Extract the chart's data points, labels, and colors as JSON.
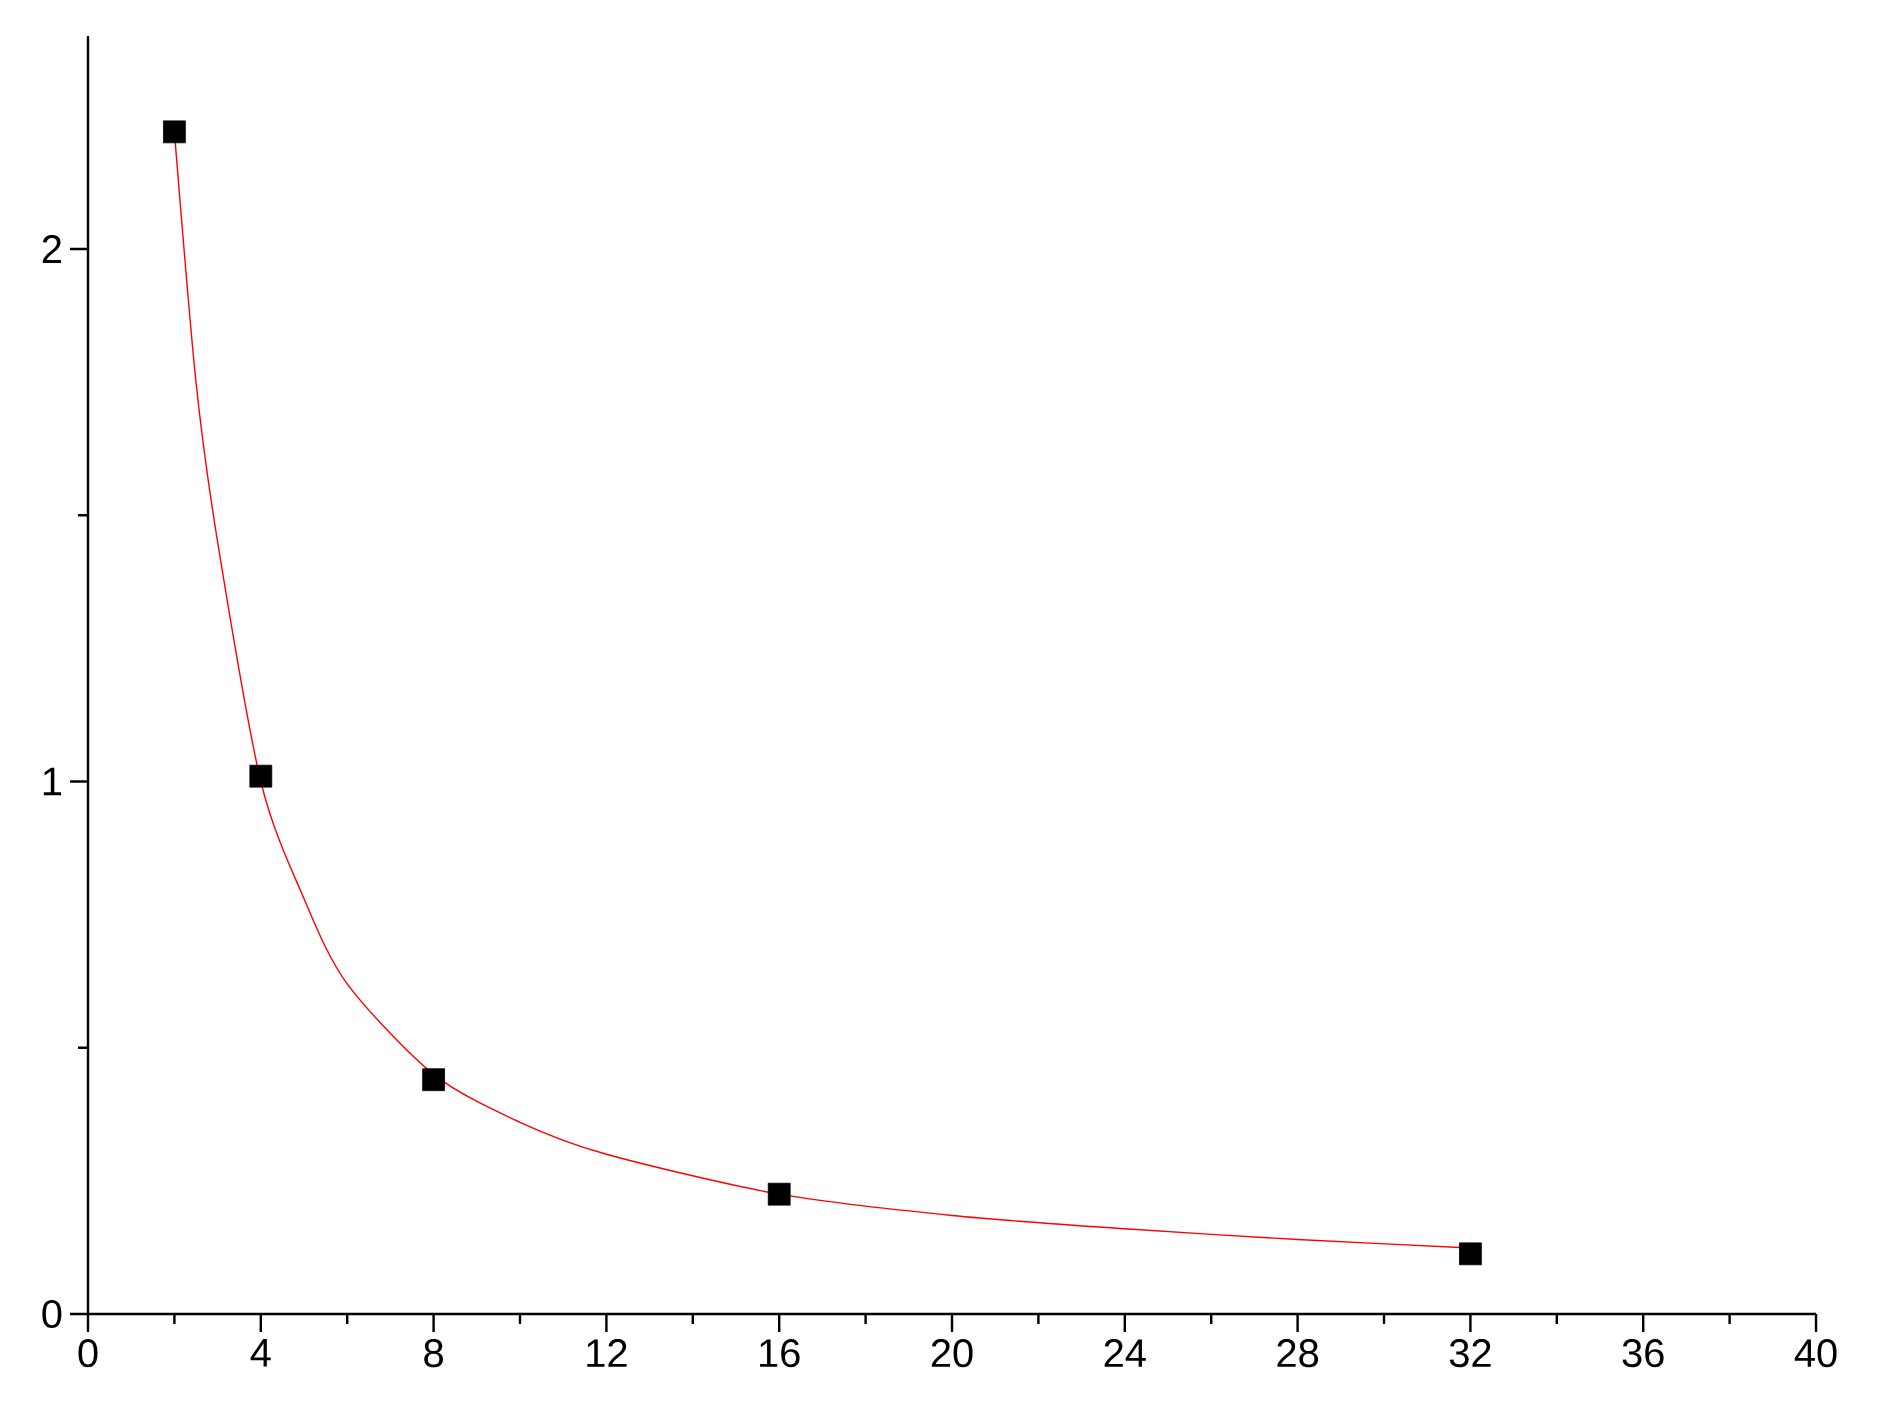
{
  "chart_data": {
    "type": "scatter",
    "series": [
      {
        "color": "#000000",
        "marker": "square",
        "x": [
          2,
          4,
          8,
          16,
          32
        ],
        "values": [
          2.22,
          1.01,
          0.44,
          0.225,
          0.113
        ]
      },
      {
        "type": "line",
        "color": "#ff0000",
        "marker": "none",
        "x": [
          2,
          2.5,
          3,
          4,
          5,
          6,
          8,
          10,
          12,
          16,
          20,
          24,
          28,
          32
        ],
        "values": [
          2.22,
          1.75,
          1.45,
          1.0,
          0.78,
          0.62,
          0.45,
          0.36,
          0.3,
          0.225,
          0.185,
          0.16,
          0.14,
          0.124
        ]
      }
    ],
    "xlim": [
      0,
      40
    ],
    "ylim": [
      0,
      2.4
    ],
    "xticks": [
      0,
      {
        "value": 2,
        "label": null
      },
      4,
      {
        "value": 6,
        "label": null
      },
      8,
      {
        "value": 10,
        "label": null
      },
      12,
      {
        "value": 14,
        "label": null
      },
      16,
      {
        "value": 18,
        "label": null
      },
      20,
      {
        "value": 22,
        "label": null
      },
      24,
      {
        "value": 26,
        "label": null
      },
      28,
      {
        "value": 30,
        "label": null
      },
      32,
      {
        "value": 34,
        "label": null
      },
      36,
      {
        "value": 38,
        "label": null
      },
      40
    ],
    "yticks": [
      0,
      {
        "value": 0.5,
        "label": null
      },
      1,
      {
        "value": 1.5,
        "label": null
      },
      2
    ]
  }
}
